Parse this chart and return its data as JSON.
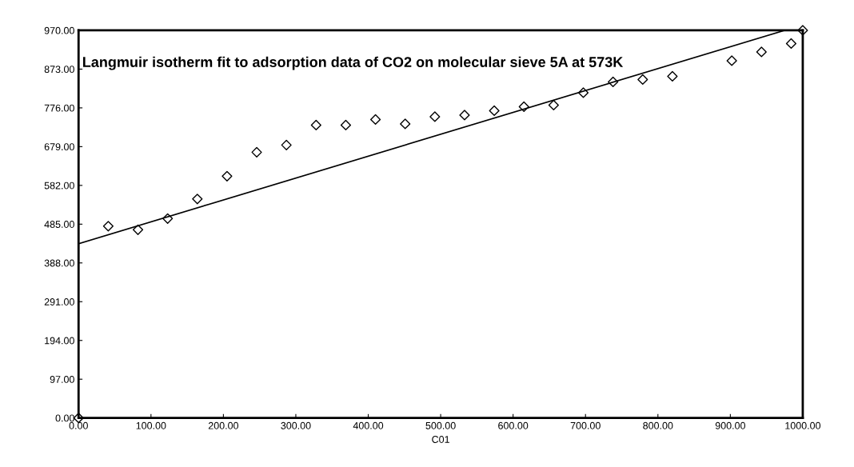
{
  "chart_data": {
    "type": "scatter",
    "title": "Langmuir isotherm fit to adsorption data of CO2 on molecular sieve 5A at 573K",
    "xlabel": "C01",
    "series": [
      {
        "color": "#000000",
        "marker": "diamond",
        "x": [
          0,
          41,
          82,
          123,
          164,
          205,
          246,
          287,
          328,
          369,
          410,
          451,
          492,
          533,
          574,
          615,
          656,
          697,
          738,
          779,
          820,
          861,
          902,
          943,
          984,
          1000
        ],
        "values": [
          0,
          480,
          471,
          499,
          548,
          605,
          665,
          683,
          733,
          733,
          747,
          736,
          754,
          758,
          769,
          779,
          783,
          814,
          841,
          847,
          855,
          null,
          894,
          916,
          937,
          970
        ]
      },
      {
        "type": "line",
        "color": "#000000",
        "marker": "none",
        "line_style": "solid",
        "x": [
          0,
          975
        ],
        "values": [
          436,
          970
        ]
      }
    ],
    "xlim": [
      0,
      1000
    ],
    "ylim": [
      0,
      970
    ],
    "xticks": [
      {
        "value": 0,
        "label": "0.00"
      },
      {
        "value": 100,
        "label": "100.00"
      },
      {
        "value": 200,
        "label": "200.00"
      },
      {
        "value": 300,
        "label": "300.00"
      },
      {
        "value": 400,
        "label": "400.00"
      },
      {
        "value": 500,
        "label": "500.00"
      },
      {
        "value": 600,
        "label": "600.00"
      },
      {
        "value": 700,
        "label": "700.00"
      },
      {
        "value": 800,
        "label": "800.00"
      },
      {
        "value": 900,
        "label": "900.00"
      },
      {
        "value": 1000,
        "label": "1000.00"
      }
    ],
    "yticks": [
      {
        "value": 0,
        "label": "0.00"
      },
      {
        "value": 97,
        "label": "97.00"
      },
      {
        "value": 194,
        "label": "194.00"
      },
      {
        "value": 291,
        "label": "291.00"
      },
      {
        "value": 388,
        "label": "388.00"
      },
      {
        "value": 485,
        "label": "485.00"
      },
      {
        "value": 582,
        "label": "582.00"
      },
      {
        "value": 679,
        "label": "679.00"
      },
      {
        "value": 776,
        "label": "776.00"
      },
      {
        "value": 873,
        "label": "873.00"
      },
      {
        "value": 970,
        "label": "970.00"
      }
    ],
    "grid": false,
    "legend": false
  }
}
